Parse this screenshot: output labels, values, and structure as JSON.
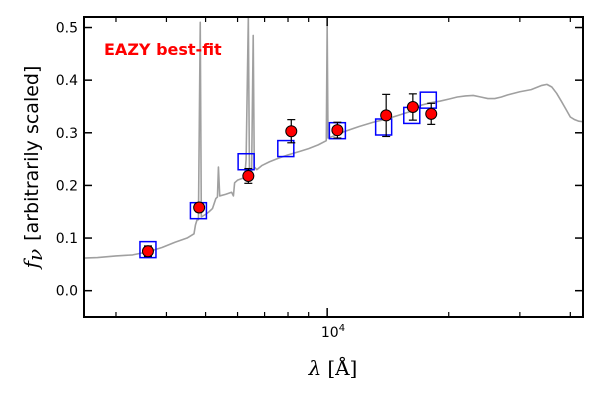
{
  "chart_data": {
    "type": "scatter",
    "annotation": "EAZY best-fit",
    "annotation_color": "#ff0000",
    "xlabel_sym": "λ",
    "xlabel_unit": "[Å]",
    "ylabel_sym": "f",
    "ylabel_sub": "ν",
    "ylabel_text": "[arbitrarily scaled]",
    "x_scale": "log",
    "xlim": [
      2500,
      43000
    ],
    "ylim": [
      -0.05,
      0.52
    ],
    "yticks": [
      0.0,
      0.1,
      0.2,
      0.3,
      0.4,
      0.5
    ],
    "ytick_labels": [
      "0.0",
      "0.1",
      "0.2",
      "0.3",
      "0.4",
      "0.5"
    ],
    "xticks_major": [
      10000
    ],
    "xtick_major_label_base": "10",
    "xtick_major_label_exp": "4",
    "xticks_minor": [
      3000,
      4000,
      5000,
      6000,
      7000,
      8000,
      9000,
      20000,
      30000,
      40000
    ],
    "colors": {
      "template": "#a0a0a0",
      "model_marker": "#0000ff",
      "obs_marker": "#ff0000",
      "errorbar": "#000000"
    },
    "series": [
      {
        "name": "EAZY best-fit",
        "kind": "template",
        "points": [
          [
            2500,
            0.062
          ],
          [
            2700,
            0.063
          ],
          [
            3000,
            0.066
          ],
          [
            3300,
            0.068
          ],
          [
            3600,
            0.074
          ],
          [
            3900,
            0.082
          ],
          [
            4200,
            0.092
          ],
          [
            4500,
            0.1
          ],
          [
            4680,
            0.108
          ],
          [
            4720,
            0.125
          ],
          [
            4760,
            0.134
          ],
          [
            4800,
            0.135
          ],
          [
            4850,
            0.51
          ],
          [
            4880,
            0.14
          ],
          [
            5000,
            0.145
          ],
          [
            5100,
            0.15
          ],
          [
            5200,
            0.156
          ],
          [
            5300,
            0.175
          ],
          [
            5350,
            0.178
          ],
          [
            5380,
            0.235
          ],
          [
            5420,
            0.18
          ],
          [
            5600,
            0.183
          ],
          [
            5800,
            0.187
          ],
          [
            5860,
            0.18
          ],
          [
            5900,
            0.205
          ],
          [
            6000,
            0.21
          ],
          [
            6250,
            0.215
          ],
          [
            6300,
            0.25
          ],
          [
            6380,
            0.52
          ],
          [
            6420,
            0.23
          ],
          [
            6500,
            0.225
          ],
          [
            6560,
            0.485
          ],
          [
            6600,
            0.235
          ],
          [
            6700,
            0.23
          ],
          [
            6900,
            0.238
          ],
          [
            7200,
            0.245
          ],
          [
            7600,
            0.252
          ],
          [
            8000,
            0.258
          ],
          [
            8500,
            0.264
          ],
          [
            9000,
            0.27
          ],
          [
            9500,
            0.277
          ],
          [
            9950,
            0.285
          ],
          [
            10000,
            0.505
          ],
          [
            10050,
            0.29
          ],
          [
            10500,
            0.295
          ],
          [
            11000,
            0.302
          ],
          [
            12000,
            0.312
          ],
          [
            13000,
            0.32
          ],
          [
            14000,
            0.326
          ],
          [
            15000,
            0.333
          ],
          [
            16000,
            0.34
          ],
          [
            17000,
            0.352
          ],
          [
            18000,
            0.357
          ],
          [
            19000,
            0.36
          ],
          [
            20000,
            0.364
          ],
          [
            21000,
            0.368
          ],
          [
            22000,
            0.37
          ],
          [
            23000,
            0.371
          ],
          [
            24000,
            0.368
          ],
          [
            25000,
            0.365
          ],
          [
            26000,
            0.365
          ],
          [
            27000,
            0.368
          ],
          [
            28000,
            0.372
          ],
          [
            30000,
            0.378
          ],
          [
            32000,
            0.382
          ],
          [
            34000,
            0.39
          ],
          [
            35000,
            0.392
          ],
          [
            36000,
            0.387
          ],
          [
            37000,
            0.375
          ],
          [
            38000,
            0.36
          ],
          [
            39000,
            0.345
          ],
          [
            40000,
            0.33
          ],
          [
            41000,
            0.325
          ],
          [
            42000,
            0.322
          ],
          [
            43000,
            0.321
          ]
        ]
      },
      {
        "name": "model photometry",
        "kind": "square",
        "x": [
          3600,
          4800,
          6300,
          7900,
          10600,
          13800,
          16200,
          17800
        ],
        "y": [
          0.078,
          0.152,
          0.245,
          0.27,
          0.304,
          0.311,
          0.333,
          0.362
        ]
      },
      {
        "name": "observed photometry",
        "kind": "point_errorbar",
        "x": [
          3600,
          4820,
          6380,
          8150,
          10600,
          14000,
          16300,
          18100
        ],
        "y": [
          0.075,
          0.158,
          0.218,
          0.303,
          0.305,
          0.333,
          0.349,
          0.336
        ],
        "yerr": [
          0.01,
          0.008,
          0.014,
          0.022,
          0.015,
          0.04,
          0.025,
          0.02
        ]
      }
    ]
  }
}
